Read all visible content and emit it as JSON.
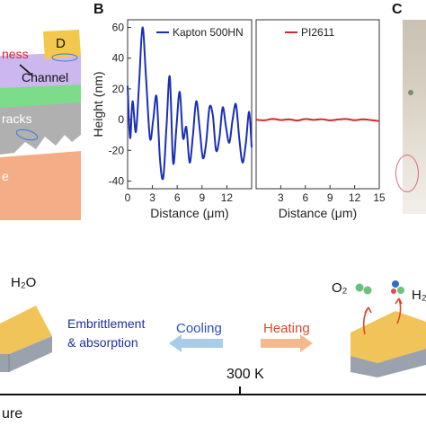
{
  "panel_a": {
    "labels": {
      "d": "D",
      "roughness": "ness",
      "channel": "Channel",
      "cracks": "racks",
      "bottom": "e"
    },
    "colors": {
      "electrode": "#f2c94c",
      "channel": "#cdb7ef",
      "green": "#7ddc8a",
      "grey": "#b0b0b0",
      "substrate": "#f4ad86"
    }
  },
  "panel_b": {
    "letter": "B",
    "y_axis_label": "Height (nm)",
    "y_ticks": [
      "60",
      "40",
      "20",
      "0",
      "-20",
      "-40"
    ],
    "left_x_ticks": [
      "0",
      "3",
      "6",
      "9",
      "12"
    ],
    "right_x_ticks": [
      "3",
      "6",
      "9",
      "12",
      "15"
    ],
    "x_axis_label": "Distance (μm)",
    "legend_left": "Kapton 500HN",
    "legend_right": "PI2611",
    "colors": {
      "kapton": "#1a2fb8",
      "pi2611": "#d42a2a"
    }
  },
  "panel_c": {
    "letter": "C"
  },
  "bottom": {
    "h2o_left": "H₂O",
    "embrittlement": "Embrittlement",
    "absorption": "& absorption",
    "cooling": "Cooling",
    "heating": "Heating",
    "o2": "O₂",
    "h2_partial": "H₂",
    "temperature_mark": "300 K",
    "axis_label_partial": "ure",
    "colors": {
      "embrittlement_text": "#1f2f9e",
      "cooling": "#2b4fbf",
      "heating": "#d84b2a",
      "cool_arrow": "#a9cde8",
      "heat_arrow": "#f5b98f"
    }
  },
  "chart_data": [
    {
      "type": "line",
      "title": "",
      "series": [
        {
          "name": "Kapton 500HN",
          "x": [
            0,
            0.3,
            0.6,
            1.0,
            1.4,
            1.8,
            2.2,
            2.7,
            3.1,
            3.5,
            3.9,
            4.3,
            4.7,
            5.1,
            5.5,
            5.9,
            6.3,
            6.7,
            7.1,
            7.5,
            7.9,
            8.3,
            8.7,
            9.1,
            9.5,
            9.9,
            10.3,
            10.7,
            11.1,
            11.5,
            11.9,
            12.3,
            12.7,
            13.1,
            13.5,
            13.9,
            14.3,
            14.7,
            15.0
          ],
          "y": [
            22,
            -12,
            12,
            -8,
            25,
            60,
            30,
            -12,
            0,
            15,
            -25,
            -38,
            -5,
            28,
            -28,
            -5,
            18,
            -12,
            -5,
            -28,
            -10,
            12,
            -5,
            -25,
            -15,
            8,
            3,
            -20,
            -12,
            8,
            -5,
            -15,
            0,
            10,
            -12,
            -28,
            -15,
            5,
            -18
          ]
        }
      ],
      "xlabel": "Distance (μm)",
      "ylabel": "Height (nm)",
      "xlim": [
        0,
        15
      ],
      "ylim": [
        -45,
        65
      ]
    },
    {
      "type": "line",
      "title": "",
      "series": [
        {
          "name": "PI2611",
          "x": [
            0,
            1,
            2,
            3,
            4,
            5,
            6,
            7,
            8,
            9,
            10,
            11,
            12,
            13,
            14,
            15
          ],
          "y": [
            0,
            -0.5,
            0.5,
            -0.3,
            0.2,
            -0.6,
            0.4,
            -0.2,
            0.3,
            -0.5,
            0.1,
            0.4,
            -0.4,
            0.2,
            -0.3,
            -1
          ]
        }
      ],
      "xlabel": "Distance (μm)",
      "ylabel": "",
      "xlim": [
        0,
        15
      ],
      "ylim": [
        -45,
        65
      ]
    }
  ]
}
